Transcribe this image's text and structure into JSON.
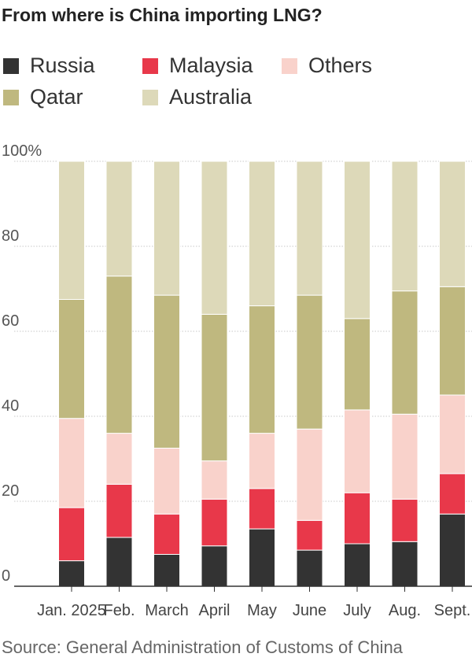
{
  "chart_data": {
    "type": "bar",
    "stacked": true,
    "title": "From where is China importing LNG?",
    "categories": [
      "Jan. 2025",
      "Feb.",
      "March",
      "April",
      "May",
      "June",
      "July",
      "Aug.",
      "Sept."
    ],
    "series": [
      {
        "name": "Russia",
        "color": "#333333",
        "values": [
          6,
          11.5,
          7.5,
          9.5,
          13.5,
          8.5,
          10,
          10.5,
          17
        ]
      },
      {
        "name": "Malaysia",
        "color": "#e8384a",
        "values": [
          12.5,
          12.5,
          9.5,
          11,
          9.5,
          7,
          12,
          10,
          9.5
        ]
      },
      {
        "name": "Others",
        "color": "#f9d2cb",
        "values": [
          21,
          12,
          15.5,
          9,
          13,
          21.5,
          19.5,
          20,
          18.5
        ]
      },
      {
        "name": "Qatar",
        "color": "#bfb87f",
        "values": [
          28,
          37,
          36,
          34.5,
          30,
          31.5,
          21.5,
          29,
          25.5
        ]
      },
      {
        "name": "Australia",
        "color": "#ddd9b9",
        "values": [
          32.5,
          27,
          31.5,
          36,
          34,
          31.5,
          37,
          30.5,
          29.5
        ]
      }
    ],
    "ylim": [
      0,
      100
    ],
    "yticks": [
      "0",
      "20",
      "40",
      "60",
      "80",
      "100%"
    ],
    "ytick_values": [
      0,
      20,
      40,
      60,
      80,
      100
    ],
    "xlabel": "",
    "ylabel": "",
    "legend_position": "top",
    "grid": true,
    "source": "Source: General Administration of Customs of China"
  }
}
